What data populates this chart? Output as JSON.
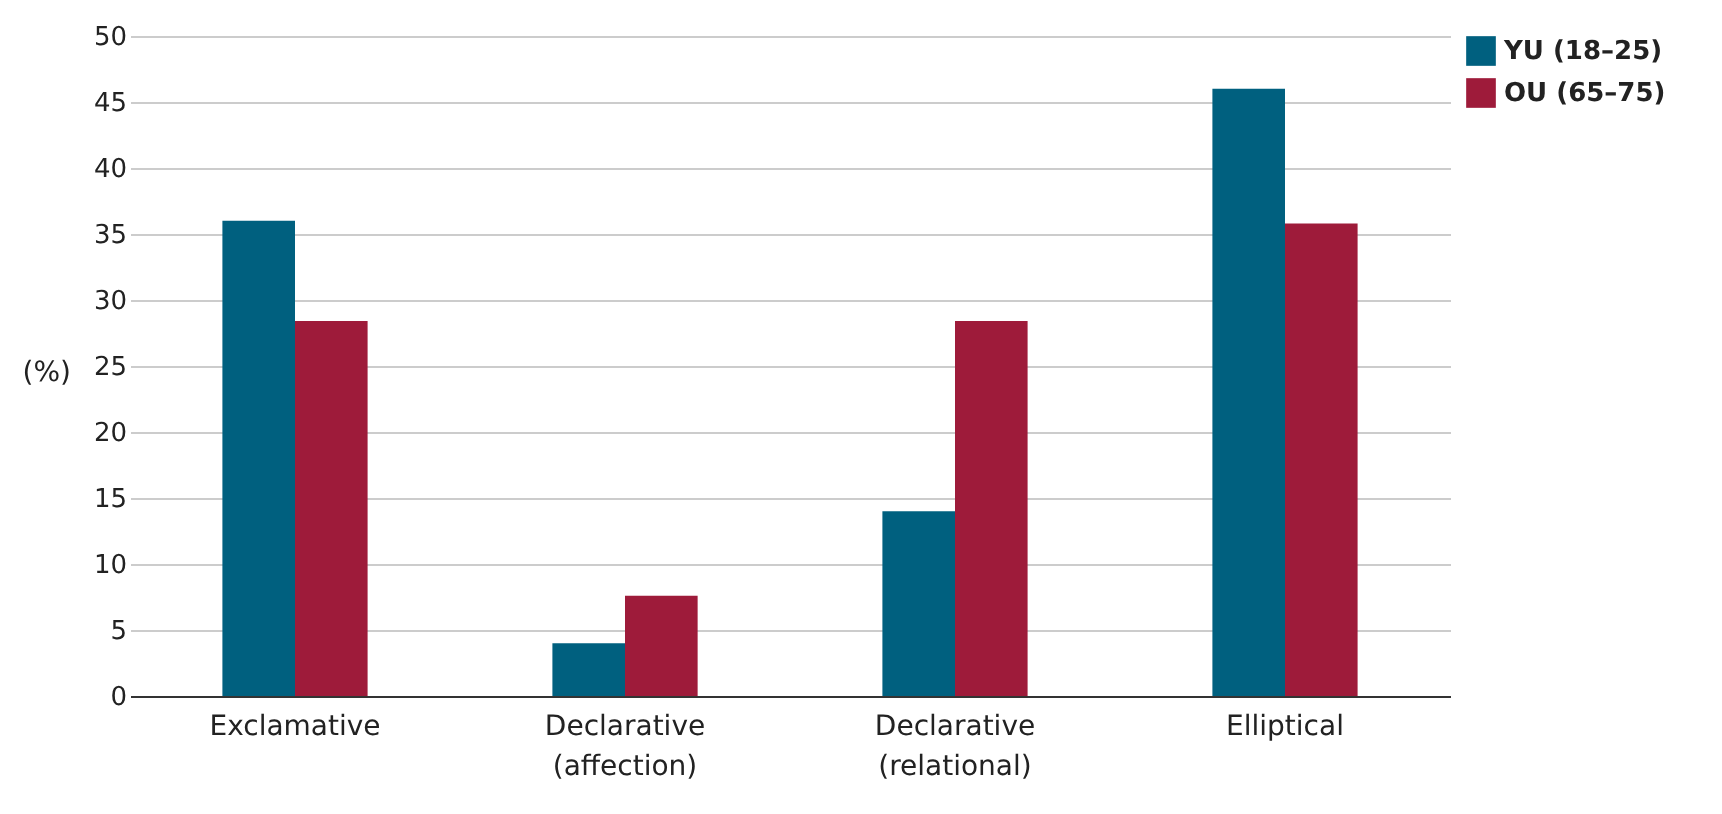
{
  "chart_data": {
    "type": "bar",
    "ylabel": "(%)",
    "categories": [
      "Exclamative",
      "Declarative\n(affection)",
      "Declarative\n(relational)",
      "Elliptical"
    ],
    "series": [
      {
        "name": "YU (18–25)",
        "color": "#00607f",
        "values": [
          36,
          4,
          14,
          46
        ]
      },
      {
        "name": "OU (65–75)",
        "color": "#9e1b3a",
        "values": [
          28.4,
          7.6,
          28.4,
          35.8
        ]
      }
    ],
    "ylim": [
      0,
      50
    ],
    "yticks": [
      0,
      5,
      10,
      15,
      20,
      25,
      30,
      35,
      40,
      45,
      50
    ],
    "grid": "y",
    "legend": "top right"
  }
}
